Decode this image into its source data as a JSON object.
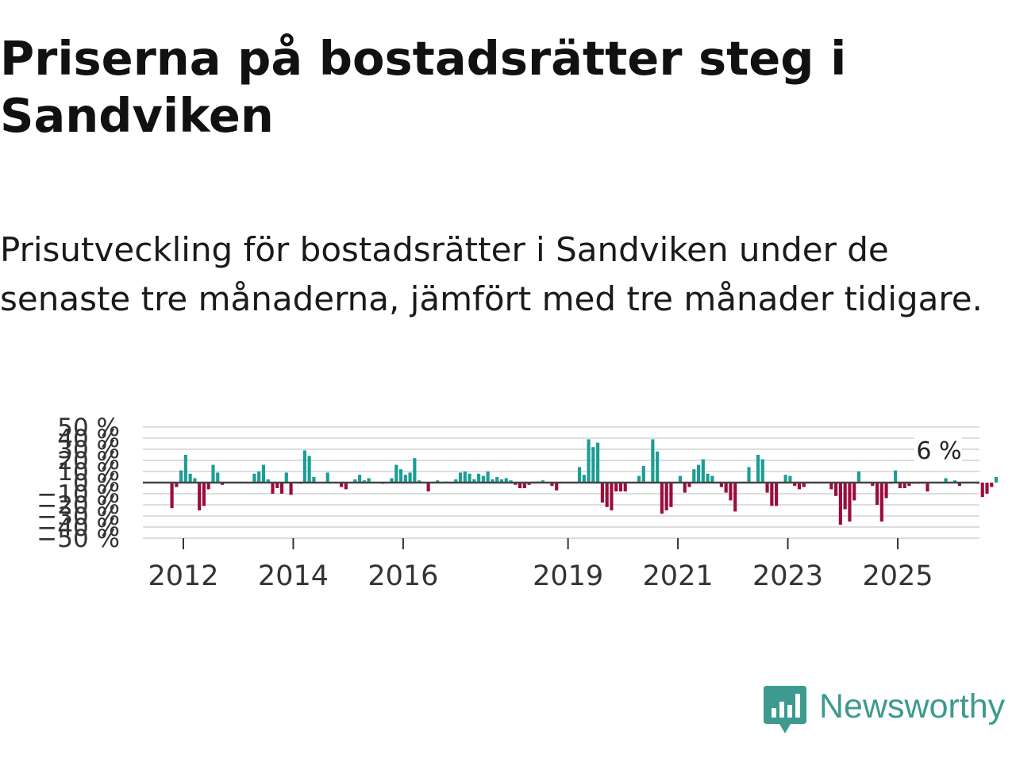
{
  "header": {
    "title": "Priserna på bostadsrätter steg i Sandviken",
    "subtitle": "Prisutveckling för bostadsrätter i Sandviken under de senaste tre månaderna, jämfört med tre månader tidigare."
  },
  "brand": {
    "name": "Newsworthy",
    "color": "#3c9a8f"
  },
  "colors": {
    "positive": "#1a9e95",
    "negative": "#9c0c3a",
    "grid": "#dddddd",
    "zero": "#444444"
  },
  "chart_data": {
    "type": "bar",
    "title": "",
    "xlabel": "",
    "ylabel": "",
    "ylim": [
      -50,
      50
    ],
    "ytick_labels": [
      "−50 %",
      "−40 %",
      "−30 %",
      "−20 %",
      "−10 %",
      "0 %",
      "10 %",
      "20 %",
      "30 %",
      "40 %",
      "50 %"
    ],
    "xtick_labels": [
      "2012",
      "2014",
      "2016",
      "2019",
      "2021",
      "2023",
      "2025"
    ],
    "xtick_years": [
      2012,
      2014,
      2016,
      2019,
      2021,
      2023,
      2025
    ],
    "start": 2011.75,
    "months_per_bar": 1,
    "last_value_label": "6 %",
    "values": [
      -23,
      -4,
      11,
      25,
      8,
      4,
      -25,
      -21,
      -6,
      16,
      9,
      -2,
      0,
      0,
      0,
      0,
      0,
      0,
      8,
      10,
      16,
      3,
      -10,
      -5,
      -10,
      9,
      -11,
      0,
      -1,
      29,
      24,
      5,
      0,
      0,
      9,
      0,
      0,
      -4,
      -6,
      0,
      3,
      7,
      2,
      4,
      0,
      0,
      -1,
      0,
      4,
      16,
      12,
      7,
      9,
      22,
      2,
      0,
      -8,
      0,
      2,
      0,
      1,
      0,
      3,
      9,
      10,
      8,
      3,
      8,
      6,
      10,
      3,
      5,
      3,
      4,
      2,
      -2,
      -5,
      -5,
      -2,
      1,
      1,
      2,
      0,
      -3,
      -7,
      0,
      0,
      0,
      0,
      14,
      7,
      39,
      32,
      36,
      -18,
      -22,
      -25,
      -8,
      -8,
      -8,
      0,
      0,
      6,
      15,
      0,
      39,
      28,
      -28,
      -25,
      -22,
      0,
      6,
      -9,
      -4,
      12,
      16,
      21,
      8,
      6,
      0,
      -4,
      -9,
      -16,
      -26,
      0,
      0,
      14,
      0,
      25,
      21,
      -9,
      -21,
      -21,
      0,
      7,
      6,
      -3,
      -6,
      -4,
      0,
      0,
      0,
      0,
      0,
      -6,
      -12,
      -38,
      -24,
      -35,
      -16,
      10,
      0,
      0,
      -3,
      -20,
      -35,
      -14,
      -1,
      11,
      -5,
      -5,
      -3,
      -1,
      -1,
      -1,
      -8,
      0,
      0,
      0,
      4,
      0,
      2,
      -3,
      0,
      0,
      0,
      -1,
      -13,
      -10,
      -4,
      5,
      0,
      0
    ]
  }
}
